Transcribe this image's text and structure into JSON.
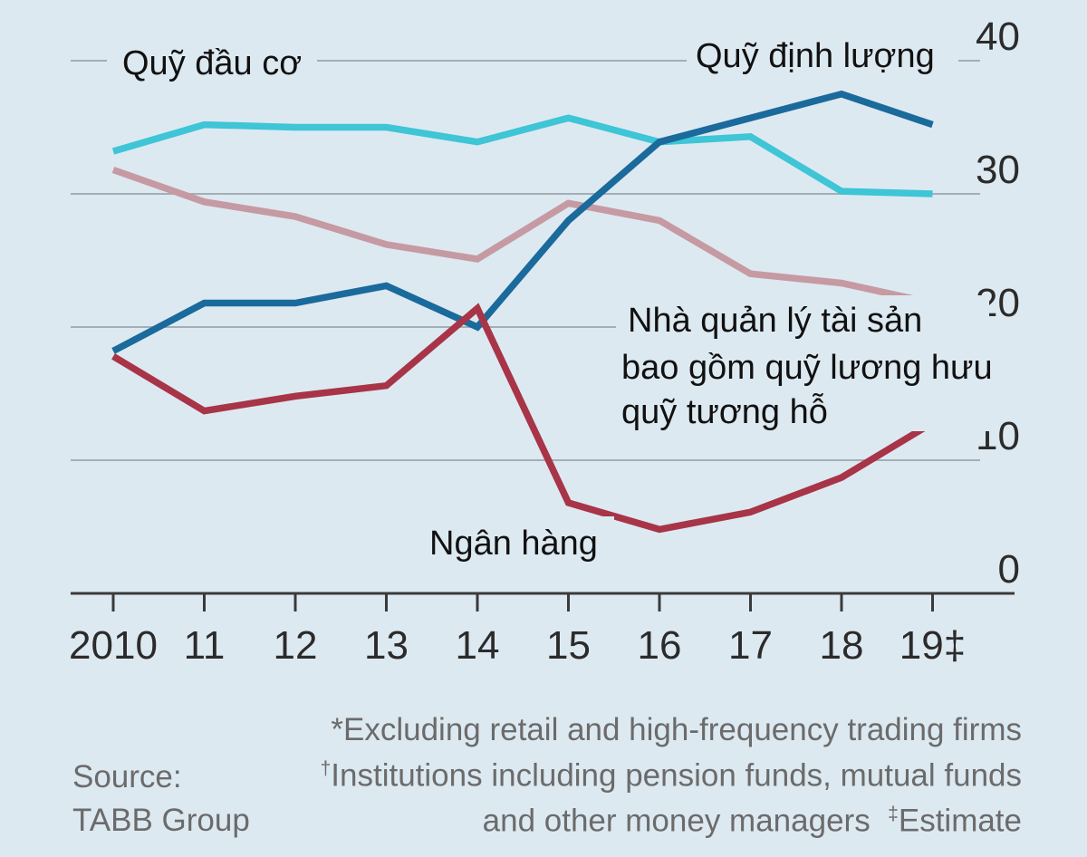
{
  "chart_data": {
    "type": "line",
    "title": "",
    "xlabel": "",
    "ylabel": "",
    "x": [
      "2010",
      "11",
      "12",
      "13",
      "14",
      "15",
      "16",
      "17",
      "18",
      "19‡"
    ],
    "ylim": [
      0,
      40
    ],
    "yticks": [
      0,
      10,
      20,
      30,
      40
    ],
    "grid": true,
    "series": [
      {
        "name": "Quỹ đầu cơ",
        "color": "#3ec5d6",
        "values": [
          33.2,
          35.2,
          35.0,
          35.0,
          33.9,
          35.7,
          33.9,
          34.3,
          30.2,
          30.0
        ]
      },
      {
        "name": "Nhà quản lý tài sản bao gồm quỹ lương hưu quỹ tương hỗ",
        "color": "#c69aa3",
        "values": [
          31.8,
          29.4,
          28.3,
          26.2,
          25.1,
          29.3,
          28.0,
          24.0,
          23.3,
          21.8
        ]
      },
      {
        "name": "Quỹ định lượng",
        "color": "#1a6a9c",
        "values": [
          18.2,
          21.8,
          21.8,
          23.1,
          20.0,
          28.0,
          33.9,
          35.7,
          37.5,
          35.2
        ]
      },
      {
        "name": "Ngân hàng",
        "color": "#a83448",
        "values": [
          17.8,
          13.7,
          14.8,
          15.6,
          21.4,
          6.8,
          4.8,
          6.1,
          8.7,
          12.8
        ]
      }
    ],
    "footnotes": {
      "source_line1": "Source:",
      "source_line2": "TABB Group",
      "note1": "*Excluding retail and high-frequency trading firms",
      "note2_marker": "†",
      "note2": "Institutions including pension funds, mutual funds",
      "note3": "and other money managers",
      "note3_marker": "‡",
      "note3_estimate": "Estimate"
    }
  }
}
